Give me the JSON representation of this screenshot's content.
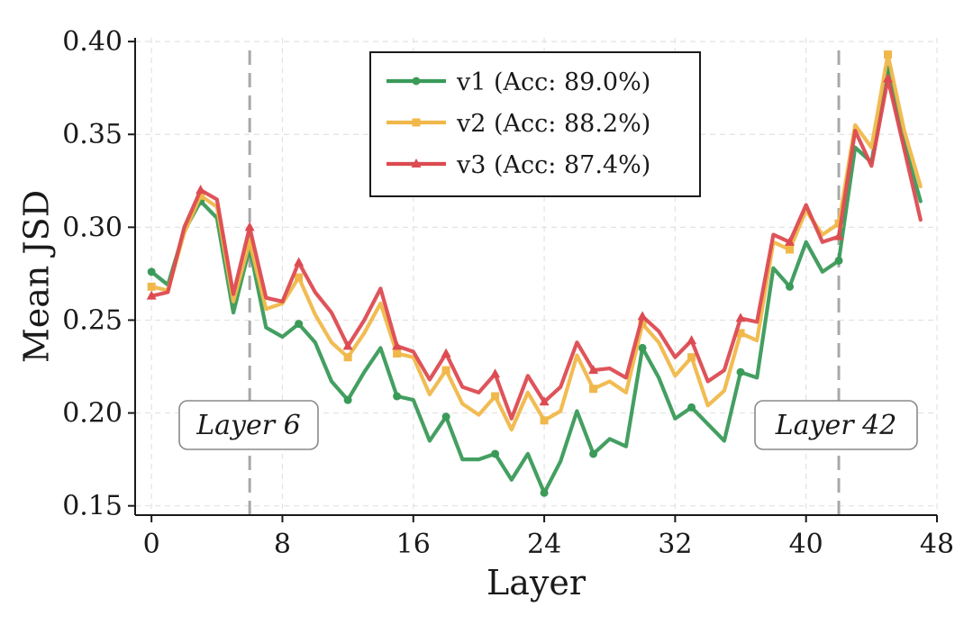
{
  "chart_data": {
    "type": "line",
    "xlabel": "Layer",
    "ylabel": "Mean JSD",
    "xlim": [
      -1,
      48
    ],
    "ylim": [
      0.145,
      0.402
    ],
    "xticks": [
      0,
      8,
      16,
      24,
      32,
      40,
      48
    ],
    "yticks": [
      0.15,
      0.2,
      0.25,
      0.3,
      0.35,
      0.4
    ],
    "xtick_labels": [
      "0",
      "8",
      "16",
      "24",
      "32",
      "40",
      "48"
    ],
    "ytick_labels": [
      "0.15",
      "0.20",
      "0.25",
      "0.30",
      "0.35",
      "0.40"
    ],
    "grid": true,
    "legend_position": "upper center",
    "vlines": [
      {
        "x": 6,
        "label": "Layer 6"
      },
      {
        "x": 42,
        "label": "Layer 42"
      }
    ],
    "x": [
      0,
      1,
      2,
      3,
      4,
      5,
      6,
      7,
      8,
      9,
      10,
      11,
      12,
      13,
      14,
      15,
      16,
      17,
      18,
      19,
      20,
      21,
      22,
      23,
      24,
      25,
      26,
      27,
      28,
      29,
      30,
      31,
      32,
      33,
      34,
      35,
      36,
      37,
      38,
      39,
      40,
      41,
      42,
      43,
      44,
      45,
      46,
      47
    ],
    "series": [
      {
        "name": "v1 (Acc: 89.0%)",
        "color": "#3a9a58",
        "marker": "circle",
        "values": [
          0.276,
          0.269,
          0.298,
          0.314,
          0.305,
          0.254,
          0.289,
          0.246,
          0.241,
          0.248,
          0.238,
          0.217,
          0.207,
          0.222,
          0.235,
          0.209,
          0.207,
          0.185,
          0.198,
          0.175,
          0.175,
          0.178,
          0.164,
          0.178,
          0.157,
          0.174,
          0.201,
          0.178,
          0.186,
          0.182,
          0.235,
          0.219,
          0.197,
          0.203,
          0.194,
          0.185,
          0.222,
          0.219,
          0.278,
          0.268,
          0.292,
          0.276,
          0.282,
          0.343,
          0.335,
          0.385,
          0.345,
          0.314
        ]
      },
      {
        "name": "v2 (Acc: 88.2%)",
        "color": "#f0b84a",
        "marker": "square",
        "values": [
          0.268,
          0.266,
          0.297,
          0.317,
          0.311,
          0.26,
          0.292,
          0.256,
          0.259,
          0.273,
          0.253,
          0.238,
          0.23,
          0.243,
          0.259,
          0.232,
          0.23,
          0.21,
          0.223,
          0.205,
          0.199,
          0.209,
          0.191,
          0.211,
          0.196,
          0.201,
          0.231,
          0.213,
          0.217,
          0.211,
          0.248,
          0.238,
          0.22,
          0.23,
          0.204,
          0.212,
          0.243,
          0.239,
          0.292,
          0.288,
          0.309,
          0.296,
          0.302,
          0.355,
          0.343,
          0.393,
          0.352,
          0.322
        ]
      },
      {
        "name": "v3 (Acc: 87.4%)",
        "color": "#dc4b51",
        "marker": "triangle",
        "values": [
          0.263,
          0.265,
          0.3,
          0.32,
          0.315,
          0.264,
          0.3,
          0.262,
          0.26,
          0.281,
          0.265,
          0.254,
          0.236,
          0.25,
          0.267,
          0.236,
          0.233,
          0.218,
          0.232,
          0.214,
          0.211,
          0.221,
          0.197,
          0.22,
          0.206,
          0.214,
          0.238,
          0.223,
          0.224,
          0.219,
          0.252,
          0.244,
          0.23,
          0.239,
          0.217,
          0.223,
          0.251,
          0.249,
          0.296,
          0.292,
          0.312,
          0.292,
          0.295,
          0.352,
          0.333,
          0.38,
          0.342,
          0.304
        ]
      }
    ]
  }
}
